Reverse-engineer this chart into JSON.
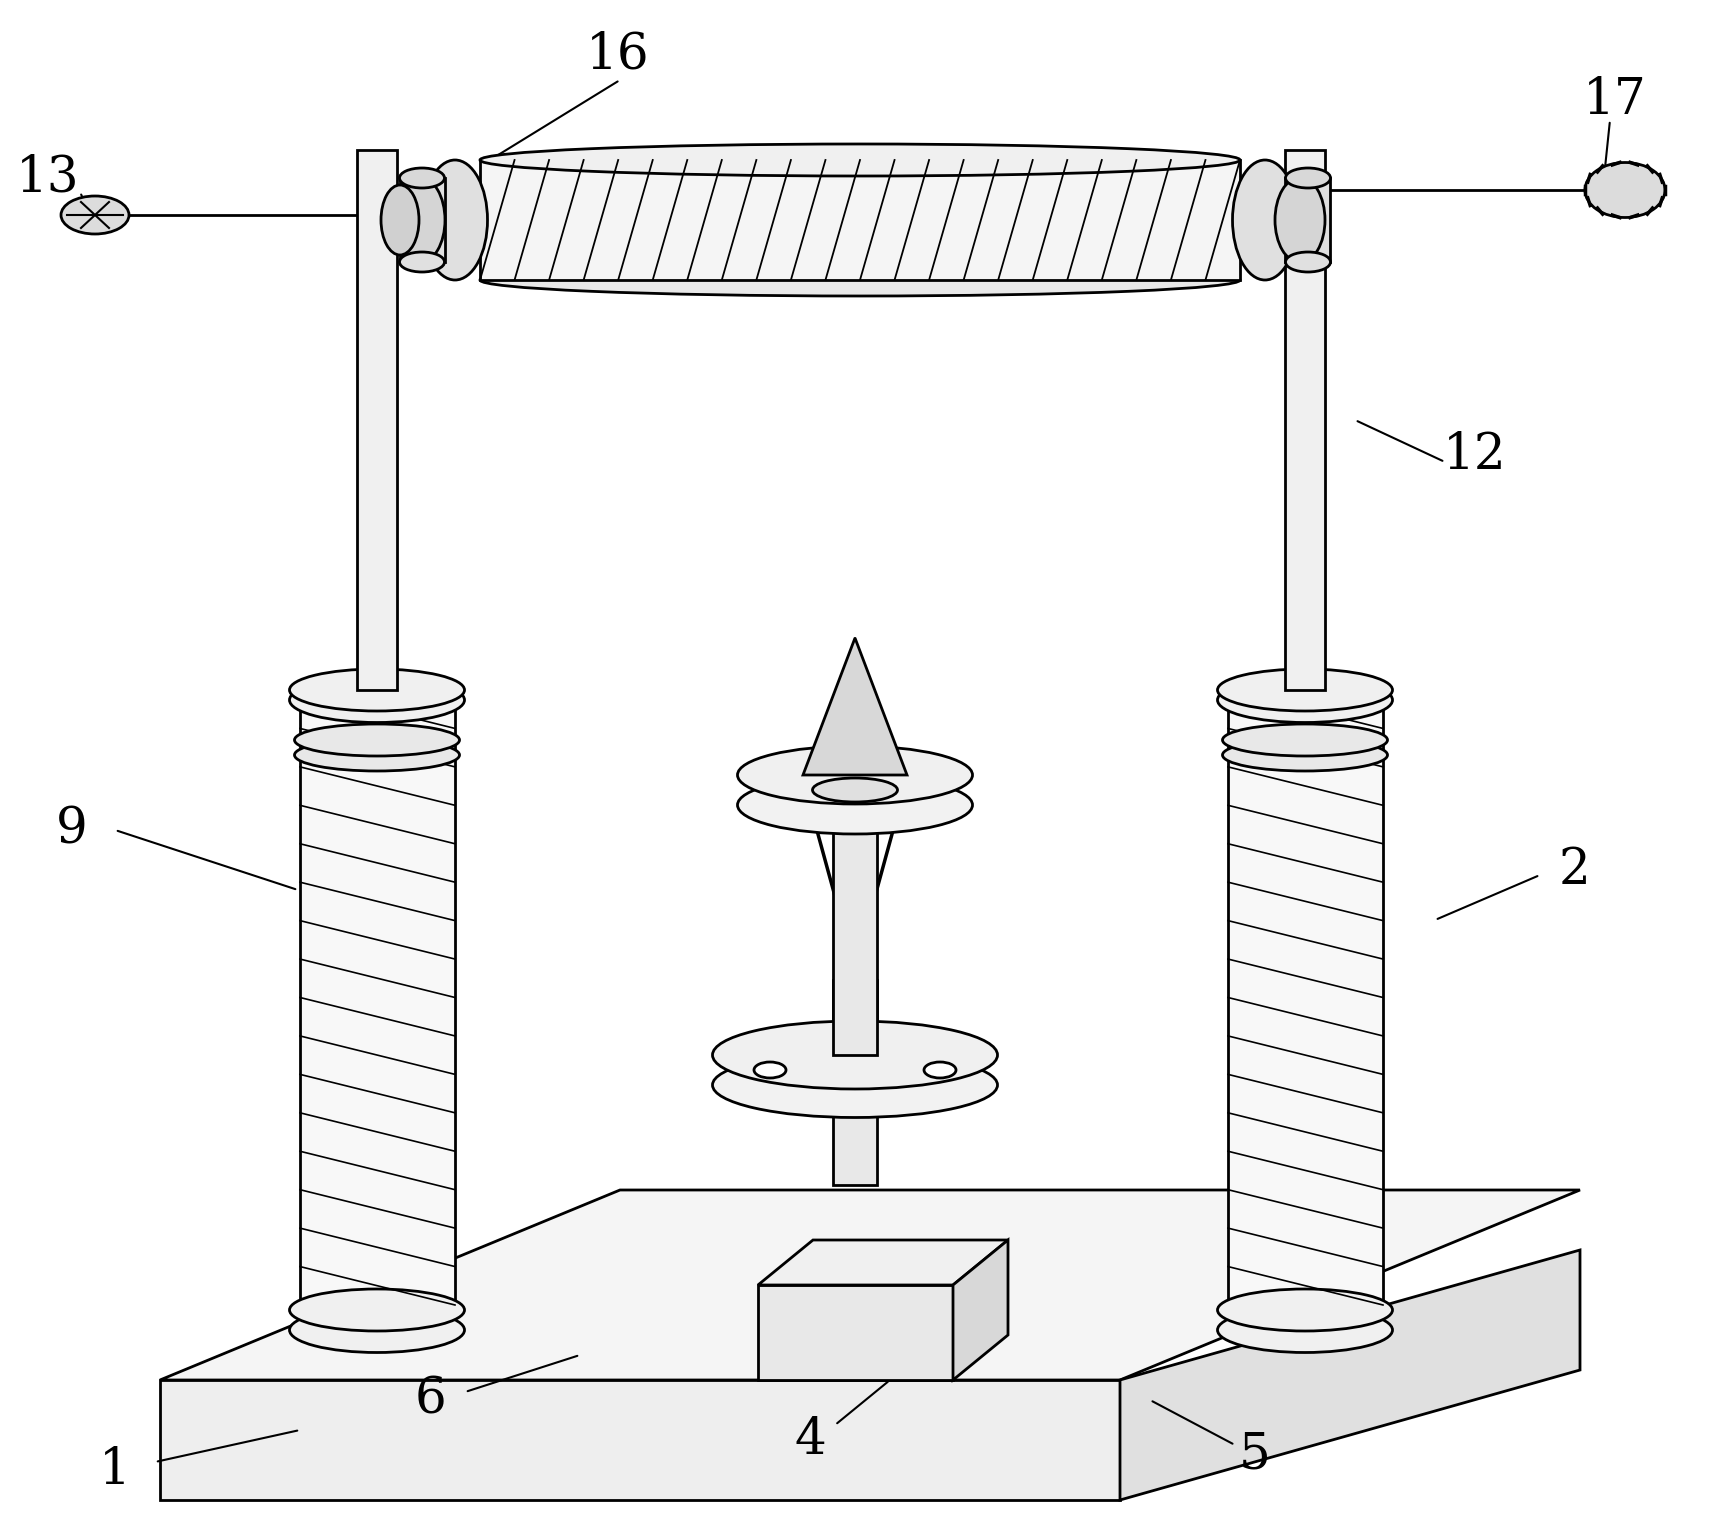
{
  "background_color": "#ffffff",
  "line_color": "#000000",
  "label_fontsize": 36,
  "figsize": [
    17.21,
    15.23
  ],
  "dpi": 100
}
